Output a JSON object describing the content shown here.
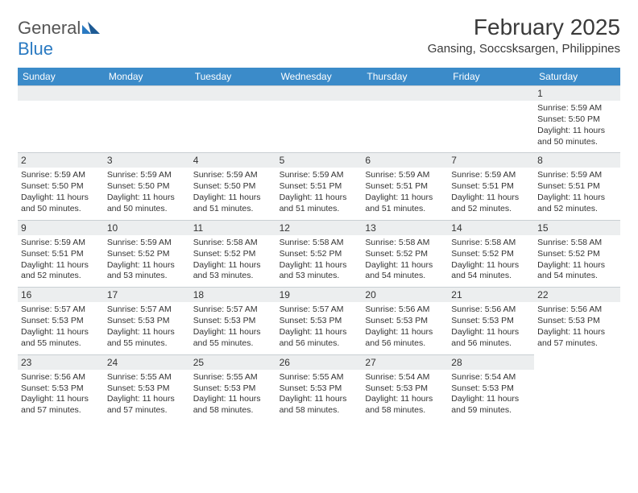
{
  "logo": {
    "general": "General",
    "blue": "Blue"
  },
  "title": "February 2025",
  "location": "Gansing, Soccsksargen, Philippines",
  "colors": {
    "header_bg": "#3b8bc9",
    "header_text": "#ffffff",
    "daynum_bg": "#eceeef",
    "cell_border": "#c9cfd3",
    "body_text": "#333333",
    "logo_gray": "#555555",
    "logo_blue": "#2a7ac2"
  },
  "weekdays": [
    "Sunday",
    "Monday",
    "Tuesday",
    "Wednesday",
    "Thursday",
    "Friday",
    "Saturday"
  ],
  "weeks": [
    [
      {
        "blank": true
      },
      {
        "blank": true
      },
      {
        "blank": true
      },
      {
        "blank": true
      },
      {
        "blank": true
      },
      {
        "blank": true
      },
      {
        "n": "1",
        "sunrise": "Sunrise: 5:59 AM",
        "sunset": "Sunset: 5:50 PM",
        "day1": "Daylight: 11 hours",
        "day2": "and 50 minutes."
      }
    ],
    [
      {
        "n": "2",
        "sunrise": "Sunrise: 5:59 AM",
        "sunset": "Sunset: 5:50 PM",
        "day1": "Daylight: 11 hours",
        "day2": "and 50 minutes."
      },
      {
        "n": "3",
        "sunrise": "Sunrise: 5:59 AM",
        "sunset": "Sunset: 5:50 PM",
        "day1": "Daylight: 11 hours",
        "day2": "and 50 minutes."
      },
      {
        "n": "4",
        "sunrise": "Sunrise: 5:59 AM",
        "sunset": "Sunset: 5:50 PM",
        "day1": "Daylight: 11 hours",
        "day2": "and 51 minutes."
      },
      {
        "n": "5",
        "sunrise": "Sunrise: 5:59 AM",
        "sunset": "Sunset: 5:51 PM",
        "day1": "Daylight: 11 hours",
        "day2": "and 51 minutes."
      },
      {
        "n": "6",
        "sunrise": "Sunrise: 5:59 AM",
        "sunset": "Sunset: 5:51 PM",
        "day1": "Daylight: 11 hours",
        "day2": "and 51 minutes."
      },
      {
        "n": "7",
        "sunrise": "Sunrise: 5:59 AM",
        "sunset": "Sunset: 5:51 PM",
        "day1": "Daylight: 11 hours",
        "day2": "and 52 minutes."
      },
      {
        "n": "8",
        "sunrise": "Sunrise: 5:59 AM",
        "sunset": "Sunset: 5:51 PM",
        "day1": "Daylight: 11 hours",
        "day2": "and 52 minutes."
      }
    ],
    [
      {
        "n": "9",
        "sunrise": "Sunrise: 5:59 AM",
        "sunset": "Sunset: 5:51 PM",
        "day1": "Daylight: 11 hours",
        "day2": "and 52 minutes."
      },
      {
        "n": "10",
        "sunrise": "Sunrise: 5:59 AM",
        "sunset": "Sunset: 5:52 PM",
        "day1": "Daylight: 11 hours",
        "day2": "and 53 minutes."
      },
      {
        "n": "11",
        "sunrise": "Sunrise: 5:58 AM",
        "sunset": "Sunset: 5:52 PM",
        "day1": "Daylight: 11 hours",
        "day2": "and 53 minutes."
      },
      {
        "n": "12",
        "sunrise": "Sunrise: 5:58 AM",
        "sunset": "Sunset: 5:52 PM",
        "day1": "Daylight: 11 hours",
        "day2": "and 53 minutes."
      },
      {
        "n": "13",
        "sunrise": "Sunrise: 5:58 AM",
        "sunset": "Sunset: 5:52 PM",
        "day1": "Daylight: 11 hours",
        "day2": "and 54 minutes."
      },
      {
        "n": "14",
        "sunrise": "Sunrise: 5:58 AM",
        "sunset": "Sunset: 5:52 PM",
        "day1": "Daylight: 11 hours",
        "day2": "and 54 minutes."
      },
      {
        "n": "15",
        "sunrise": "Sunrise: 5:58 AM",
        "sunset": "Sunset: 5:52 PM",
        "day1": "Daylight: 11 hours",
        "day2": "and 54 minutes."
      }
    ],
    [
      {
        "n": "16",
        "sunrise": "Sunrise: 5:57 AM",
        "sunset": "Sunset: 5:53 PM",
        "day1": "Daylight: 11 hours",
        "day2": "and 55 minutes."
      },
      {
        "n": "17",
        "sunrise": "Sunrise: 5:57 AM",
        "sunset": "Sunset: 5:53 PM",
        "day1": "Daylight: 11 hours",
        "day2": "and 55 minutes."
      },
      {
        "n": "18",
        "sunrise": "Sunrise: 5:57 AM",
        "sunset": "Sunset: 5:53 PM",
        "day1": "Daylight: 11 hours",
        "day2": "and 55 minutes."
      },
      {
        "n": "19",
        "sunrise": "Sunrise: 5:57 AM",
        "sunset": "Sunset: 5:53 PM",
        "day1": "Daylight: 11 hours",
        "day2": "and 56 minutes."
      },
      {
        "n": "20",
        "sunrise": "Sunrise: 5:56 AM",
        "sunset": "Sunset: 5:53 PM",
        "day1": "Daylight: 11 hours",
        "day2": "and 56 minutes."
      },
      {
        "n": "21",
        "sunrise": "Sunrise: 5:56 AM",
        "sunset": "Sunset: 5:53 PM",
        "day1": "Daylight: 11 hours",
        "day2": "and 56 minutes."
      },
      {
        "n": "22",
        "sunrise": "Sunrise: 5:56 AM",
        "sunset": "Sunset: 5:53 PM",
        "day1": "Daylight: 11 hours",
        "day2": "and 57 minutes."
      }
    ],
    [
      {
        "n": "23",
        "sunrise": "Sunrise: 5:56 AM",
        "sunset": "Sunset: 5:53 PM",
        "day1": "Daylight: 11 hours",
        "day2": "and 57 minutes."
      },
      {
        "n": "24",
        "sunrise": "Sunrise: 5:55 AM",
        "sunset": "Sunset: 5:53 PM",
        "day1": "Daylight: 11 hours",
        "day2": "and 57 minutes."
      },
      {
        "n": "25",
        "sunrise": "Sunrise: 5:55 AM",
        "sunset": "Sunset: 5:53 PM",
        "day1": "Daylight: 11 hours",
        "day2": "and 58 minutes."
      },
      {
        "n": "26",
        "sunrise": "Sunrise: 5:55 AM",
        "sunset": "Sunset: 5:53 PM",
        "day1": "Daylight: 11 hours",
        "day2": "and 58 minutes."
      },
      {
        "n": "27",
        "sunrise": "Sunrise: 5:54 AM",
        "sunset": "Sunset: 5:53 PM",
        "day1": "Daylight: 11 hours",
        "day2": "and 58 minutes."
      },
      {
        "n": "28",
        "sunrise": "Sunrise: 5:54 AM",
        "sunset": "Sunset: 5:53 PM",
        "day1": "Daylight: 11 hours",
        "day2": "and 59 minutes."
      },
      {
        "blank": true,
        "noBar": true
      }
    ]
  ]
}
